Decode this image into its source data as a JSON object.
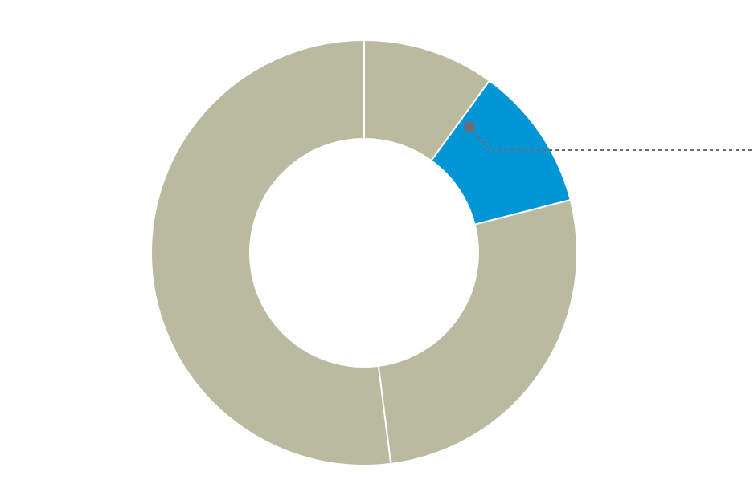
{
  "chart_data": {
    "type": "donut",
    "values": [
      10,
      11,
      27,
      52
    ],
    "colors": [
      "#b8bb9f",
      "#0096d6",
      "#b8bb9f",
      "#b8bb9f"
    ]
  }
}
